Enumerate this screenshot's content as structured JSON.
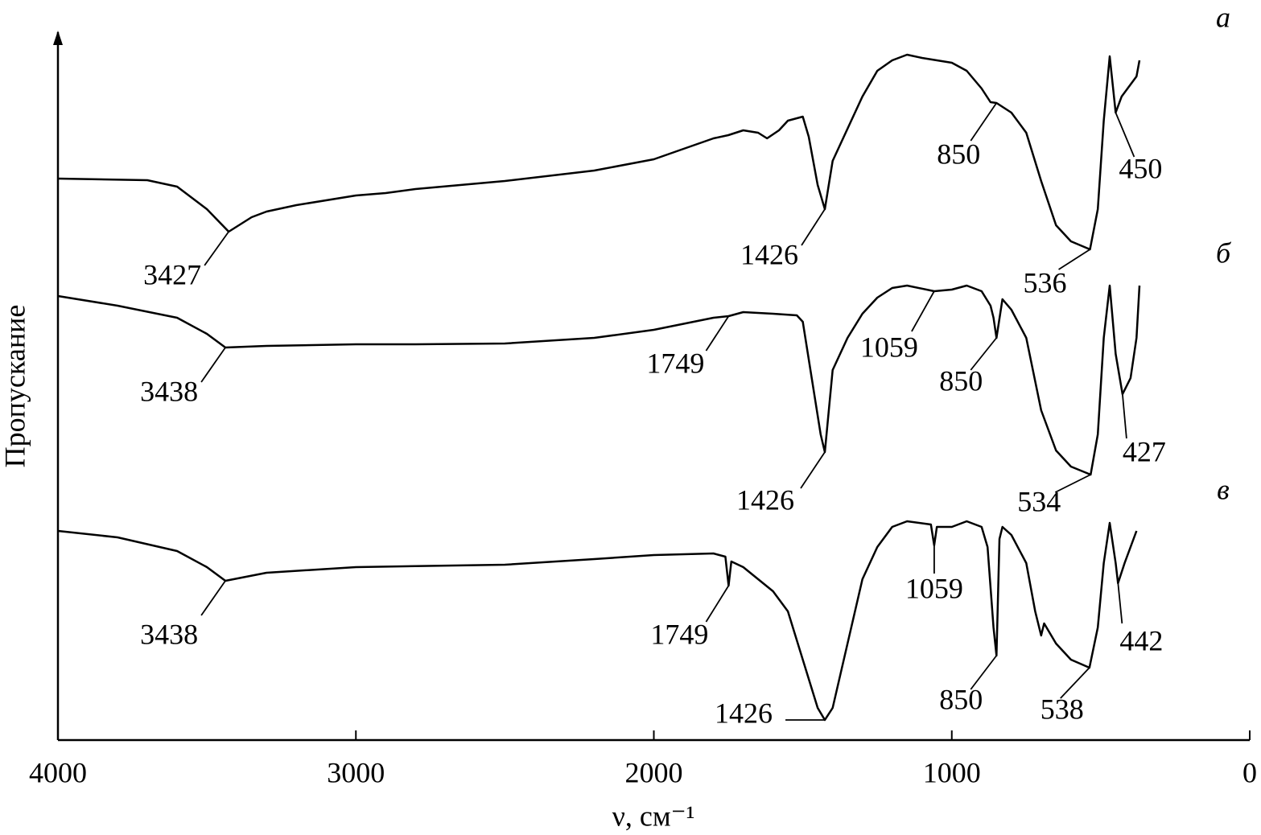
{
  "chart_data": {
    "type": "line",
    "y_label": "Пропускание",
    "x_label": "ν, см⁻¹",
    "xlim": [
      4000,
      0
    ],
    "xticks": [
      4000,
      3000,
      2000,
      1000,
      0
    ],
    "ylim": [
      0,
      88
    ],
    "series": [
      {
        "name": "а",
        "color": "#000000",
        "x": [
          4000,
          3700,
          3600,
          3500,
          3427,
          3350,
          3300,
          3200,
          3000,
          2900,
          2800,
          2500,
          2200,
          2000,
          1900,
          1800,
          1750,
          1700,
          1650,
          1620,
          1580,
          1550,
          1500,
          1480,
          1450,
          1426,
          1400,
          1350,
          1300,
          1250,
          1200,
          1150,
          1100,
          1000,
          950,
          900,
          870,
          850,
          800,
          750,
          700,
          650,
          600,
          536,
          510,
          490,
          470,
          450,
          430,
          410,
          380,
          370
        ],
        "values": [
          69.8,
          69.6,
          68.8,
          66,
          63.2,
          65,
          65.7,
          66.5,
          67.7,
          68,
          68.5,
          69.5,
          70.8,
          72.2,
          73.5,
          74.8,
          75.2,
          75.8,
          75.5,
          74.8,
          75.8,
          77,
          77.5,
          75,
          69,
          66,
          72,
          76,
          80,
          83.2,
          84.5,
          85.2,
          84.8,
          84.2,
          83.2,
          81,
          79.3,
          79.2,
          78,
          75.5,
          69.5,
          64,
          62,
          61,
          66,
          77,
          85,
          78,
          80,
          81,
          82.5,
          84.5
        ],
        "peaks": [
          3427,
          1426,
          850,
          536,
          450
        ]
      },
      {
        "name": "б",
        "color": "#000000",
        "x": [
          4000,
          3800,
          3600,
          3500,
          3438,
          3300,
          3000,
          2800,
          2500,
          2200,
          2000,
          1800,
          1749,
          1700,
          1600,
          1520,
          1500,
          1470,
          1440,
          1426,
          1400,
          1350,
          1300,
          1250,
          1200,
          1150,
          1059,
          1000,
          950,
          900,
          870,
          860,
          850,
          830,
          800,
          750,
          700,
          650,
          600,
          534,
          510,
          490,
          470,
          450,
          427,
          400,
          380,
          370
        ],
        "values": [
          55.2,
          54,
          52.5,
          50.5,
          48.8,
          49,
          49.2,
          49.2,
          49.3,
          50,
          51,
          52.5,
          52.7,
          53.2,
          53,
          52.8,
          52,
          45,
          38,
          35.8,
          46,
          50,
          53,
          55,
          56.2,
          56.5,
          55.8,
          56,
          56.5,
          55.8,
          54,
          52.5,
          50,
          54.8,
          53.5,
          50,
          41,
          36,
          34,
          33,
          38,
          50,
          56.5,
          48,
          43,
          45,
          50,
          56.5
        ],
        "peaks": [
          3438,
          1749,
          1426,
          1059,
          850,
          534,
          427
        ]
      },
      {
        "name": "в",
        "color": "#000000",
        "x": [
          4000,
          3800,
          3600,
          3500,
          3438,
          3300,
          3000,
          2500,
          2200,
          2000,
          1800,
          1760,
          1749,
          1740,
          1700,
          1650,
          1600,
          1550,
          1500,
          1450,
          1426,
          1400,
          1350,
          1300,
          1250,
          1200,
          1150,
          1070,
          1059,
          1050,
          1000,
          950,
          900,
          880,
          860,
          850,
          840,
          830,
          800,
          750,
          720,
          700,
          690,
          650,
          600,
          538,
          510,
          490,
          470,
          450,
          442,
          420,
          400,
          380
        ],
        "values": [
          26,
          25.2,
          23.5,
          21.5,
          19.8,
          20.8,
          21.5,
          21.8,
          22.5,
          23,
          23.2,
          22.8,
          19.2,
          22.2,
          21.5,
          20,
          18.5,
          16,
          10,
          4,
          2.5,
          4,
          12,
          20,
          24,
          26.5,
          27.2,
          26.8,
          24.2,
          26.5,
          26.5,
          27.2,
          26.5,
          24,
          14,
          10.5,
          25,
          26.5,
          25.5,
          22,
          16,
          13,
          14.5,
          12,
          10,
          9,
          14,
          22,
          27,
          22,
          19.5,
          22,
          24,
          26
        ],
        "peaks": [
          3438,
          1749,
          1426,
          1059,
          850,
          538,
          442
        ]
      }
    ]
  }
}
